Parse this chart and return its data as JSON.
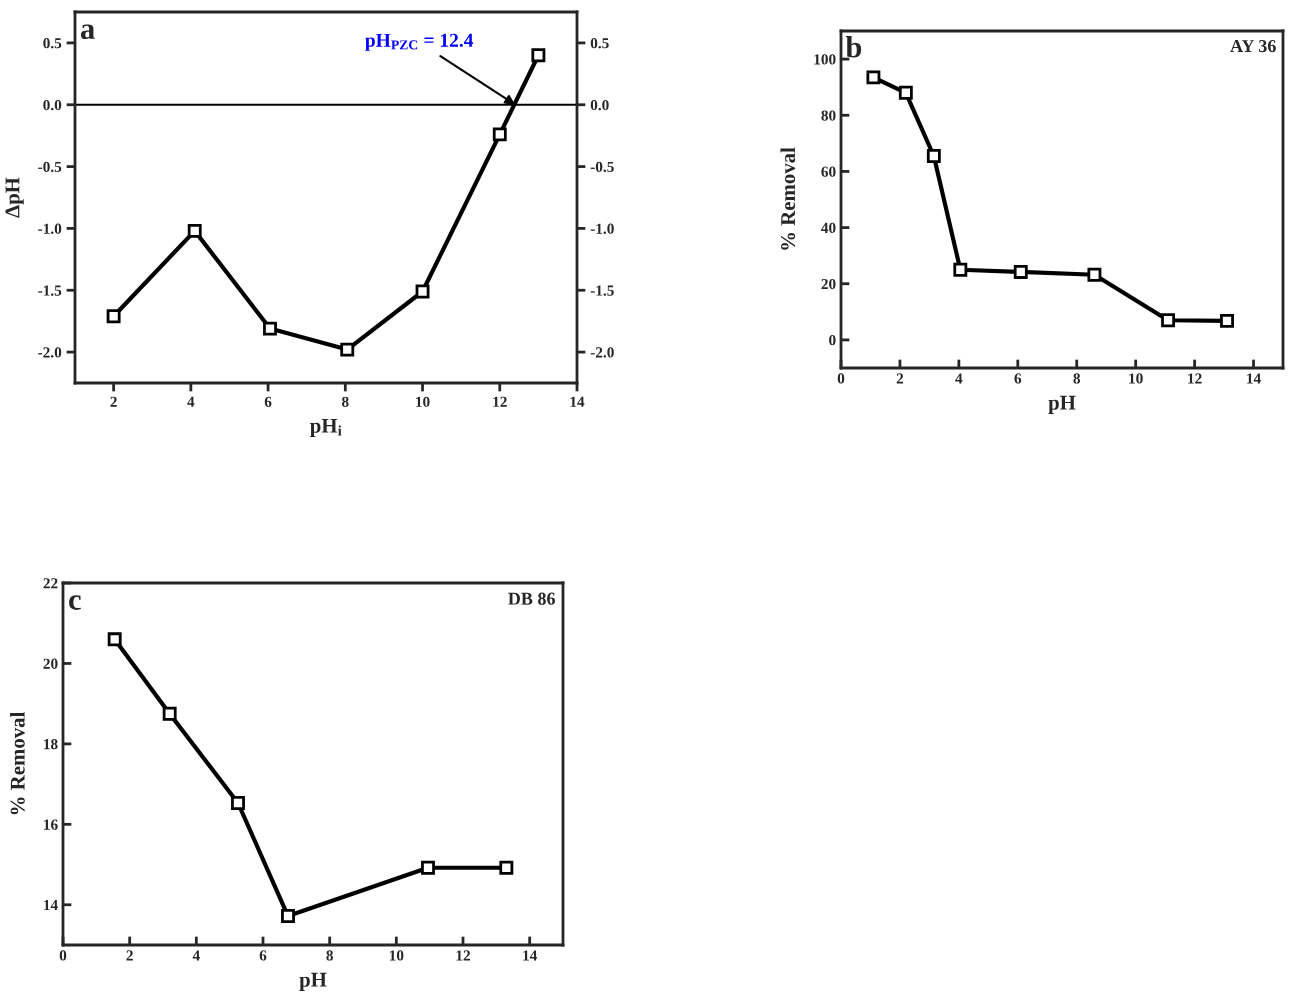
{
  "chart_data": [
    {
      "type": "line",
      "xlabel": "pH$_{i}$",
      "ylabel": "ΔpH",
      "annotations": [
        "a",
        {
          "text": "pH$_{PZC}$ = 12.4",
          "x": 12.4,
          "y": 0
        }
      ],
      "x": [
        2,
        4.1,
        6.05,
        8.05,
        10,
        12,
        13
      ],
      "series": [
        {
          "color": "#000000",
          "values": [
            -1.71,
            -1.02,
            -1.81,
            -1.98,
            -1.51,
            -0.24,
            0.4
          ]
        }
      ],
      "xlim": [
        1,
        14
      ],
      "xticks": [
        2,
        4,
        6,
        8,
        10,
        12,
        14
      ],
      "ylim": [
        -2.25,
        0.75
      ],
      "yticks": [
        {
          "value": 0.5,
          "label": "0.5"
        },
        {
          "value": 0,
          "label": "0.0"
        },
        {
          "value": -0.5,
          "label": "-0.5"
        },
        {
          "value": -1,
          "label": "-1.0"
        },
        {
          "value": -1.5,
          "label": "-1.5"
        },
        {
          "value": -2,
          "label": "-2.0"
        }
      ],
      "y2lim": [
        -2.25,
        0.75
      ],
      "y2ticks": [
        {
          "value": 0.5,
          "label": "0.5"
        },
        {
          "value": 0,
          "label": "0.0"
        },
        {
          "value": -0.5,
          "label": "-0.5"
        },
        {
          "value": -1,
          "label": "-1.0"
        },
        {
          "value": -1.5,
          "label": "-1.5"
        },
        {
          "value": -2,
          "label": "-2.0"
        }
      ],
      "ref_lines": [
        {
          "axis": "y",
          "value": 0,
          "color": "#000000"
        }
      ],
      "marker": "square",
      "grid": false,
      "legend": false
    },
    {
      "type": "line",
      "xlabel": "pH",
      "ylabel": "% Removal",
      "annotations": [
        "b",
        "AY 36"
      ],
      "x": [
        1.1,
        2.2,
        3.15,
        4.05,
        6.1,
        8.6,
        11.1,
        13.1
      ],
      "series": [
        {
          "color": "#000000",
          "values": [
            93.5,
            88,
            65.5,
            25,
            24.2,
            23.2,
            7,
            6.8
          ]
        }
      ],
      "xlim": [
        0,
        15
      ],
      "xticks": [
        0,
        2,
        4,
        6,
        8,
        10,
        12,
        14
      ],
      "ylim": [
        -10,
        110
      ],
      "yticks": [
        0,
        20,
        40,
        60,
        80,
        100
      ],
      "marker": "square",
      "grid": false,
      "legend": false
    },
    {
      "type": "line",
      "xlabel": "pH",
      "ylabel": "% Removal",
      "annotations": [
        "c",
        "DB 86"
      ],
      "x": [
        1.55,
        3.2,
        5.25,
        6.75,
        10.95,
        13.3
      ],
      "series": [
        {
          "color": "#000000",
          "values": [
            20.6,
            18.75,
            16.53,
            13.72,
            14.92,
            14.92
          ]
        }
      ],
      "xlim": [
        0,
        15
      ],
      "xticks": [
        0,
        2,
        4,
        6,
        8,
        10,
        12,
        14
      ],
      "ylim": [
        13,
        22
      ],
      "yticks": [
        14,
        16,
        18,
        20,
        22
      ],
      "marker": "square",
      "grid": false,
      "legend": false
    }
  ]
}
